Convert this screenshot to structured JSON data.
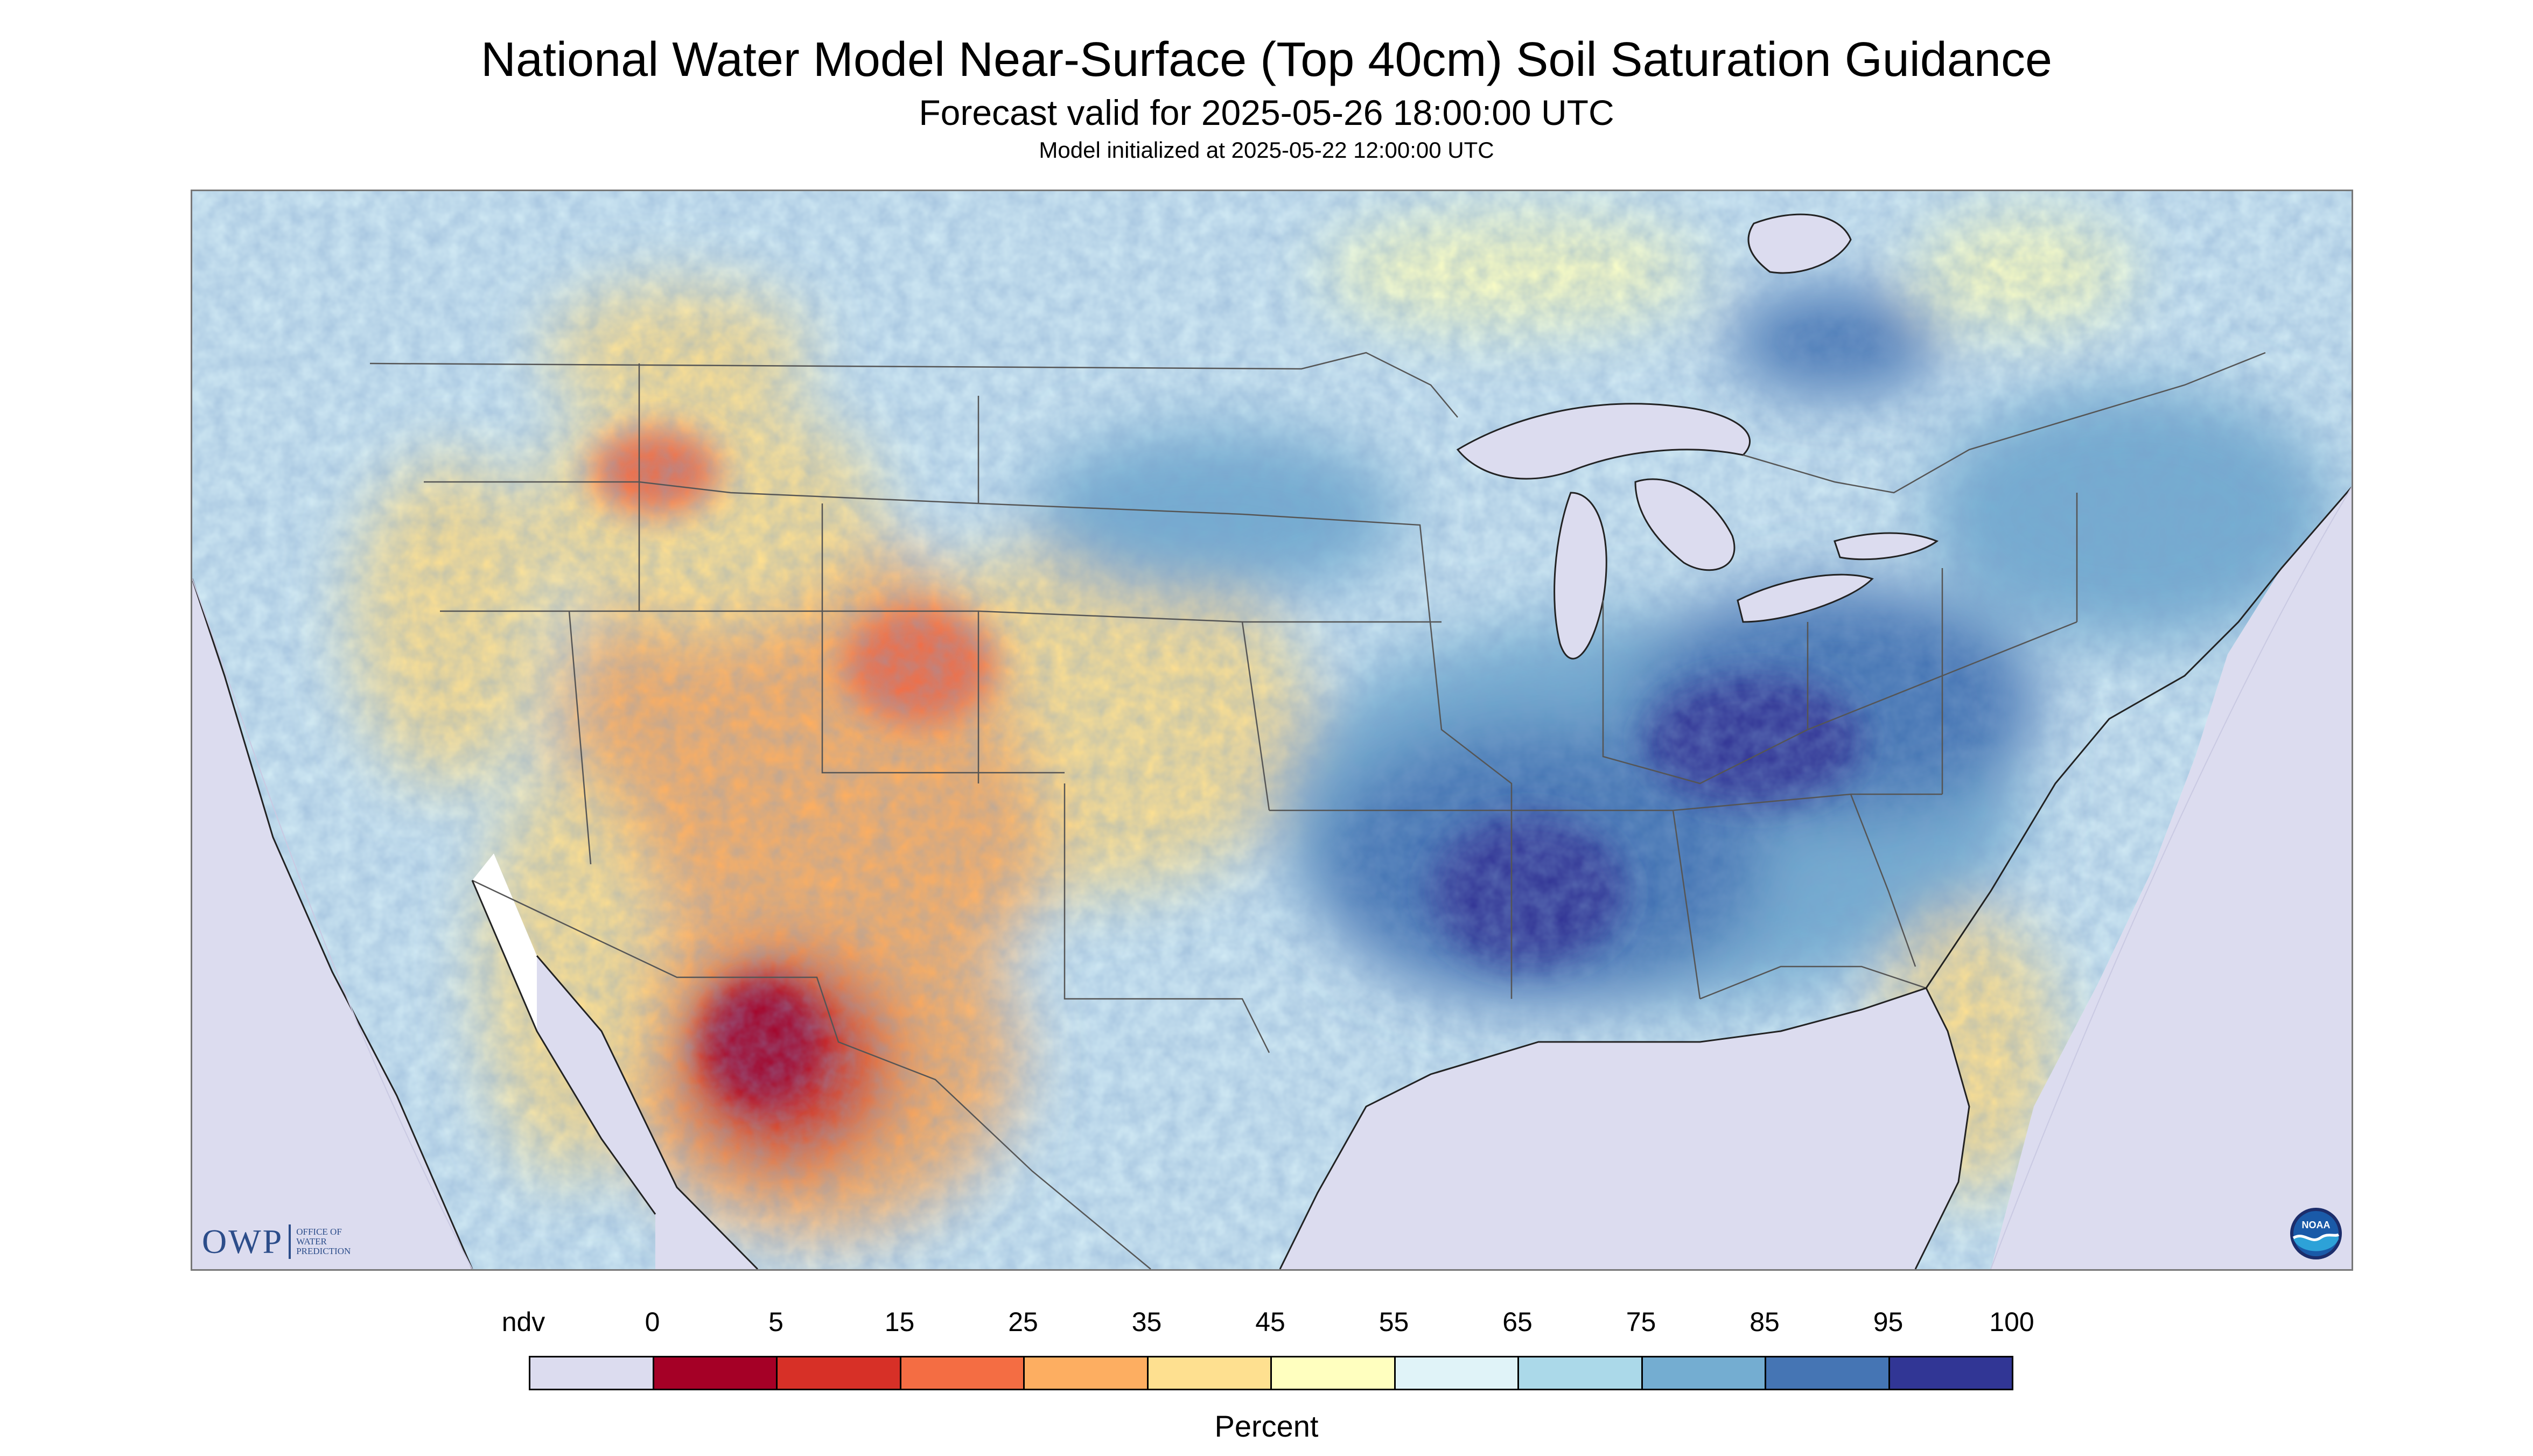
{
  "title": "National Water Model Near-Surface (Top 40cm) Soil Saturation Guidance",
  "subtitle": "Forecast valid for 2025-05-26 18:00:00 UTC",
  "init_line": "Model initialized at 2025-05-22 12:00:00 UTC",
  "logos": {
    "owp_mark": "OWP",
    "owp_text_1": "OFFICE OF",
    "owp_text_2": "WATER",
    "owp_text_3": "PREDICTION",
    "noaa_text": "NOAA"
  },
  "legend": {
    "unit": "Percent",
    "labels": [
      "ndv",
      "0",
      "5",
      "15",
      "25",
      "35",
      "45",
      "55",
      "65",
      "75",
      "85",
      "95",
      "100"
    ],
    "colors": [
      "#dcdcef",
      "#a50026",
      "#d73027",
      "#f46d43",
      "#fdae61",
      "#fee090",
      "#ffffbf",
      "#e0f3f8",
      "#abd9e9",
      "#74add1",
      "#4575b4",
      "#313695"
    ]
  },
  "map": {
    "nodata_color": "#dcdcef",
    "lake_color": "#dcdcef",
    "ocean_color": "#ffffff",
    "land_color": "#cfe8f3",
    "wet_color": "#4575b4",
    "dry_color": "#f46d43",
    "very_dry_color": "#d73027",
    "boundary_color": "#555555"
  }
}
